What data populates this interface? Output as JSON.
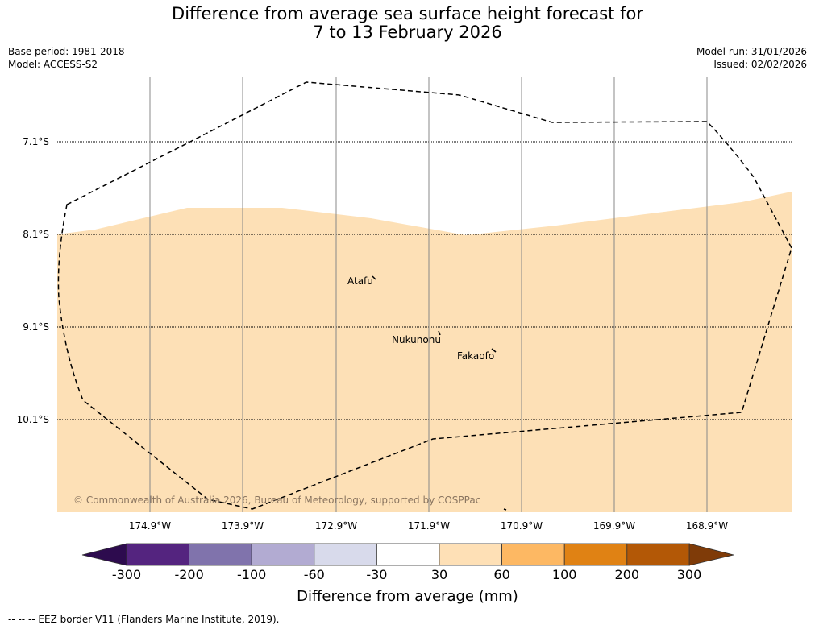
{
  "title_line1": "Difference from average sea surface height forecast for",
  "title_line2": "7 to 13 February 2026",
  "base_period": "Base period: 1981-2018",
  "model": "Model: ACCESS-S2",
  "model_run": "Model run: 31/01/2026",
  "issued": "Issued: 02/02/2026",
  "latitudes": [
    "7.1°S",
    "8.1°S",
    "9.1°S",
    "10.1°S"
  ],
  "longitudes": [
    "174.9°W",
    "173.9°W",
    "172.9°W",
    "171.9°W",
    "170.9°W",
    "169.9°W",
    "168.9°W"
  ],
  "places": {
    "atafu": "Atafu",
    "nukunonu": "Nukunonu",
    "fakaofo": "Fakaofo"
  },
  "copyright": "© Commonwealth of Australia 2026, Bureau of Meteorology, supported by COSPPac",
  "colorbar": {
    "ticks": [
      "-300",
      "-200",
      "-100",
      "-60",
      "-30",
      "30",
      "60",
      "100",
      "200",
      "300"
    ],
    "colors": [
      "#2d0b4e",
      "#54247f",
      "#8073ac",
      "#b2abd2",
      "#d8daeb",
      "#ffffff",
      "#fee0b6",
      "#fdb863",
      "#e08214",
      "#b35806",
      "#7f3b08"
    ],
    "label": "Difference from average (mm)"
  },
  "footnote": "--  --  -- EEZ border V11 (Flanders Marine Institute, 2019)."
}
